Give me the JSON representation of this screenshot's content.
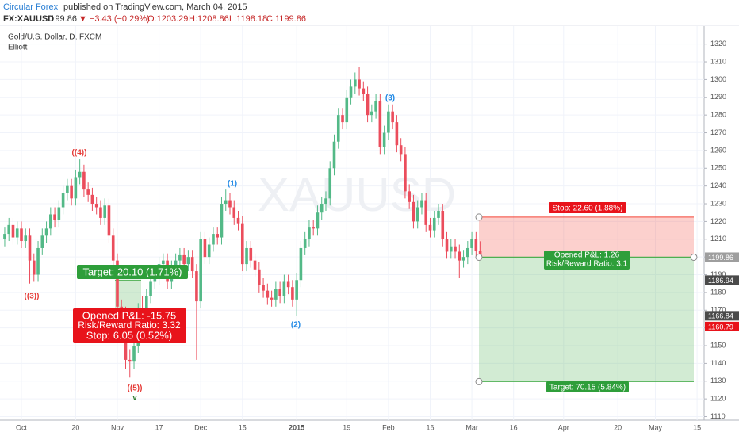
{
  "header": {
    "author": "Circular Forex",
    "published": "published on TradingView.com, March 04, 2015",
    "symbol": "FX:XAUUSD",
    "last": "1199.86",
    "change": "▼ −3.43 (−0.29%)",
    "open": "O:1203.29",
    "high": "H:1208.86",
    "low": "L:1198.18",
    "close": "C:1199.86"
  },
  "chart_data": {
    "type": "candlestick",
    "title": "Gold/U.S. Dollar, D, FXCM",
    "subtitle": "Elliott",
    "watermark": "XAUUSD",
    "up_color": "#53b987",
    "down_color": "#eb4d5c",
    "grid": true,
    "ylim": [
      1108,
      1327
    ],
    "yticks": [
      1110,
      1120,
      1130,
      1140,
      1150,
      1160,
      1170,
      1180,
      1190,
      1200,
      1210,
      1220,
      1230,
      1240,
      1250,
      1260,
      1270,
      1280,
      1290,
      1300,
      1310,
      1320
    ],
    "categories": [
      null,
      null,
      null,
      null,
      "Oct",
      null,
      null,
      null,
      null,
      null,
      null,
      null,
      null,
      null,
      null,
      null,
      null,
      "20",
      null,
      null,
      null,
      null,
      null,
      null,
      null,
      null,
      null,
      "Nov",
      null,
      null,
      null,
      null,
      null,
      null,
      null,
      null,
      null,
      "17",
      null,
      null,
      null,
      null,
      null,
      null,
      null,
      null,
      null,
      "Dec",
      null,
      null,
      null,
      null,
      null,
      null,
      null,
      null,
      null,
      "15",
      null,
      null,
      null,
      null,
      null,
      null,
      null,
      null,
      null,
      null,
      null,
      null,
      "2015",
      null,
      null,
      null,
      null,
      null,
      null,
      null,
      null,
      null,
      null,
      null,
      "19",
      null,
      null,
      null,
      null,
      null,
      null,
      null,
      null,
      null,
      "Feb",
      null,
      null,
      null,
      null,
      null,
      null,
      null,
      null,
      null,
      "16",
      null,
      null,
      null,
      null,
      null,
      null,
      null,
      null,
      null,
      "Mar",
      null,
      null,
      null,
      null,
      null,
      null,
      null,
      null,
      null,
      "16",
      null,
      null,
      null,
      null,
      null,
      null,
      null,
      null,
      null,
      null,
      null,
      "Apr",
      null,
      null,
      null,
      null,
      null,
      null,
      null,
      null,
      null,
      null,
      null,
      null,
      "20",
      null,
      null,
      null,
      null,
      null,
      null,
      null,
      null,
      "May",
      null,
      null,
      null,
      null,
      null,
      null,
      null,
      null,
      null,
      "15"
    ],
    "open": [
      1210,
      1213,
      1218,
      1211,
      1216,
      1209,
      1212,
      1198,
      1190,
      1205,
      1212,
      1216,
      1224,
      1221,
      1228,
      1236,
      1240,
      1233,
      1245,
      1248,
      1238,
      1235,
      1230,
      1228,
      1222,
      1229,
      1212,
      1198,
      1172,
      1168,
      1142,
      1141,
      1150,
      1170,
      1163,
      1178,
      1186,
      1188,
      1196,
      1198,
      1186,
      1194,
      1198,
      1201,
      1196,
      1200,
      1192,
      1175,
      1210,
      1200,
      1207,
      1213,
      1211,
      1230,
      1232,
      1228,
      1222,
      1219,
      1196,
      1205,
      1198,
      1193,
      1184,
      1181,
      1177,
      1176,
      1182,
      1178,
      1186,
      1183,
      1176,
      1187,
      1205,
      1210,
      1217,
      1216,
      1225,
      1230,
      1233,
      1250,
      1265,
      1280,
      1276,
      1290,
      1296,
      1300,
      1295,
      1292,
      1280,
      1282,
      1288,
      1262,
      1270,
      1282,
      1276,
      1263,
      1258,
      1237,
      1231,
      1220,
      1228,
      1232,
      1218,
      1215,
      1222,
      1226,
      1210,
      1203,
      1206,
      1203,
      1198,
      1200,
      1205,
      1210,
      1203.29,
      null,
      null,
      null,
      null,
      null,
      null,
      null,
      null,
      null,
      null,
      null,
      null,
      null,
      null,
      null,
      null,
      null,
      null,
      null,
      null,
      null,
      null,
      null,
      null,
      null,
      null,
      null,
      null,
      null,
      null,
      null,
      null,
      null,
      null,
      null,
      null,
      null,
      null,
      null,
      null,
      null,
      null,
      null,
      null,
      null,
      null,
      null,
      null,
      null,
      null,
      null,
      null
    ],
    "high": [
      1217,
      1222,
      1222,
      1220,
      1220,
      1216,
      1216,
      1202,
      1209,
      1216,
      1220,
      1228,
      1228,
      1232,
      1240,
      1244,
      1244,
      1249,
      1255,
      1252,
      1242,
      1239,
      1234,
      1232,
      1233,
      1233,
      1216,
      1202,
      1176,
      1172,
      1148,
      1160,
      1174,
      1178,
      1182,
      1190,
      1192,
      1200,
      1202,
      1202,
      1198,
      1202,
      1205,
      1205,
      1204,
      1204,
      1196,
      1214,
      1214,
      1211,
      1217,
      1217,
      1234,
      1238,
      1236,
      1232,
      1226,
      1223,
      1209,
      1209,
      1202,
      1197,
      1188,
      1185,
      1181,
      1186,
      1186,
      1190,
      1190,
      1187,
      1191,
      1209,
      1214,
      1221,
      1221,
      1229,
      1234,
      1237,
      1254,
      1269,
      1284,
      1284,
      1294,
      1300,
      1304,
      1307,
      1299,
      1296,
      1286,
      1292,
      1292,
      1274,
      1286,
      1286,
      1280,
      1267,
      1262,
      1241,
      1235,
      1232,
      1236,
      1236,
      1222,
      1226,
      1230,
      1230,
      1214,
      1210,
      1210,
      1207,
      1204,
      1209,
      1214,
      1214,
      1208.86,
      null,
      null,
      null,
      null,
      null,
      null,
      null,
      null,
      null,
      null,
      null,
      null,
      null,
      null,
      null,
      null,
      null,
      null,
      null,
      null,
      null,
      null,
      null,
      null,
      null,
      null,
      null,
      null,
      null,
      null,
      null,
      null,
      null,
      null,
      null,
      null,
      null,
      null,
      null,
      null,
      null,
      null,
      null,
      null,
      null,
      null,
      null,
      null,
      null,
      null,
      null,
      null
    ],
    "low": [
      1206,
      1209,
      1207,
      1207,
      1205,
      1205,
      1185,
      1186,
      1186,
      1201,
      1208,
      1212,
      1217,
      1217,
      1224,
      1232,
      1229,
      1229,
      1241,
      1234,
      1231,
      1226,
      1224,
      1218,
      1218,
      1208,
      1194,
      1168,
      1160,
      1137,
      1132,
      1137,
      1146,
      1158,
      1159,
      1174,
      1182,
      1184,
      1192,
      1182,
      1182,
      1190,
      1194,
      1192,
      1192,
      1188,
      1142,
      1171,
      1196,
      1196,
      1203,
      1207,
      1207,
      1226,
      1224,
      1218,
      1215,
      1192,
      1192,
      1194,
      1189,
      1180,
      1177,
      1173,
      1172,
      1172,
      1174,
      1174,
      1179,
      1172,
      1167,
      1183,
      1201,
      1206,
      1212,
      1212,
      1221,
      1226,
      1229,
      1246,
      1261,
      1272,
      1272,
      1286,
      1292,
      1291,
      1288,
      1276,
      1276,
      1278,
      1258,
      1258,
      1266,
      1272,
      1259,
      1254,
      1233,
      1227,
      1216,
      1216,
      1224,
      1214,
      1211,
      1211,
      1218,
      1206,
      1199,
      1199,
      1199,
      1188,
      1194,
      1196,
      1201,
      1199,
      1198.18,
      null,
      null,
      null,
      null,
      null,
      null,
      null,
      null,
      null,
      null,
      null,
      null,
      null,
      null,
      null,
      null,
      null,
      null,
      null,
      null,
      null,
      null,
      null,
      null,
      null,
      null,
      null,
      null,
      null,
      null,
      null,
      null,
      null,
      null,
      null,
      null,
      null,
      null,
      null,
      null,
      null,
      null,
      null,
      null,
      null,
      null,
      null,
      null,
      null,
      null,
      null,
      null
    ],
    "close": [
      1213,
      1218,
      1211,
      1216,
      1209,
      1212,
      1198,
      1190,
      1205,
      1212,
      1216,
      1224,
      1221,
      1228,
      1236,
      1240,
      1233,
      1245,
      1248,
      1238,
      1235,
      1230,
      1228,
      1222,
      1229,
      1212,
      1198,
      1172,
      1168,
      1142,
      1141,
      1150,
      1170,
      1163,
      1178,
      1186,
      1188,
      1196,
      1198,
      1186,
      1194,
      1198,
      1201,
      1196,
      1200,
      1192,
      1175,
      1210,
      1200,
      1207,
      1213,
      1211,
      1230,
      1232,
      1228,
      1222,
      1219,
      1196,
      1205,
      1198,
      1193,
      1184,
      1181,
      1177,
      1176,
      1182,
      1178,
      1186,
      1183,
      1176,
      1187,
      1205,
      1210,
      1217,
      1216,
      1225,
      1230,
      1233,
      1250,
      1265,
      1280,
      1276,
      1290,
      1296,
      1300,
      1295,
      1292,
      1280,
      1282,
      1288,
      1262,
      1270,
      1282,
      1276,
      1263,
      1258,
      1237,
      1231,
      1220,
      1228,
      1232,
      1218,
      1215,
      1222,
      1226,
      1210,
      1203,
      1206,
      1203,
      1198,
      1200,
      1205,
      1210,
      1203.29,
      1199.86,
      null,
      null,
      null,
      null,
      null,
      null,
      null,
      null,
      null,
      null,
      null,
      null,
      null,
      null,
      null,
      null,
      null,
      null,
      null,
      null,
      null,
      null,
      null,
      null,
      null,
      null,
      null,
      null,
      null,
      null,
      null,
      null,
      null,
      null,
      null,
      null,
      null,
      null,
      null,
      null,
      null,
      null,
      null,
      null,
      null,
      null,
      null,
      null,
      null,
      null,
      null,
      null
    ],
    "elliott": [
      "((4))",
      "((3))",
      "((5))",
      "v",
      "(1)",
      "(2)",
      "(3)"
    ],
    "positions": [
      {
        "side": "long",
        "entry": 1166.84,
        "target": 1186.94,
        "stop": 1160.79,
        "target_label": "Target: 20.10 (1.71%)",
        "pnl_label": "Opened P&L: -15.75",
        "rr_label": "Risk/Reward Ratio: 3.32",
        "stop_label": "Stop: 6.05 (0.52%)"
      },
      {
        "side": "short",
        "entry": 1199.86,
        "target": 1129.71,
        "stop": 1222.46,
        "target_label": "Target: 70.15 (5.84%)",
        "pnl_label": "Opened P&L: 1.26",
        "rr_label": "Risk/Reward Ratio: 3.1",
        "stop_label": "Stop: 22.60 (1.88%)"
      }
    ]
  }
}
